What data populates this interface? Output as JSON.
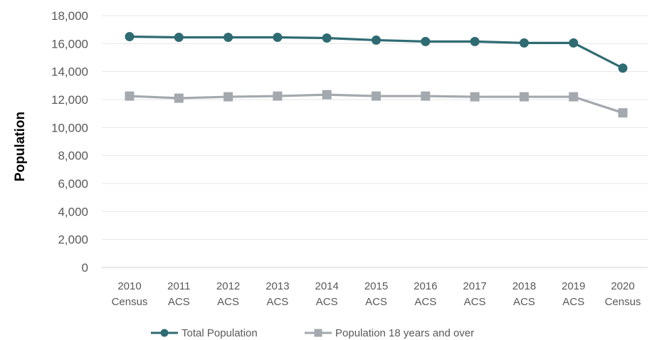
{
  "chart_data": {
    "type": "line",
    "title": "",
    "xlabel": "",
    "ylabel": "Population",
    "ylim": [
      0,
      18000
    ],
    "yticks": [
      "0",
      "2,000",
      "4,000",
      "6,000",
      "8,000",
      "10,000",
      "12,000",
      "14,000",
      "16,000",
      "18,000"
    ],
    "ytick_values": [
      0,
      2000,
      4000,
      6000,
      8000,
      10000,
      12000,
      14000,
      16000,
      18000
    ],
    "categories": [
      [
        "2010",
        "Census"
      ],
      [
        "2011",
        "ACS"
      ],
      [
        "2012",
        "ACS"
      ],
      [
        "2013",
        "ACS"
      ],
      [
        "2014",
        "ACS"
      ],
      [
        "2015",
        "ACS"
      ],
      [
        "2016",
        "ACS"
      ],
      [
        "2017",
        "ACS"
      ],
      [
        "2018",
        "ACS"
      ],
      [
        "2019",
        "ACS"
      ],
      [
        "2020",
        "Census"
      ]
    ],
    "grid": true,
    "legend_position": "bottom",
    "series": [
      {
        "name": "Total Population",
        "color": "#2f6b73",
        "marker": "circle",
        "values": [
          16500,
          16450,
          16450,
          16450,
          16400,
          16250,
          16150,
          16150,
          16050,
          16050,
          14250
        ]
      },
      {
        "name": "Population 18 years and over",
        "color": "#a3a9ae",
        "marker": "square",
        "values": [
          12250,
          12100,
          12200,
          12250,
          12350,
          12250,
          12250,
          12200,
          12200,
          12200,
          11050
        ]
      }
    ]
  }
}
